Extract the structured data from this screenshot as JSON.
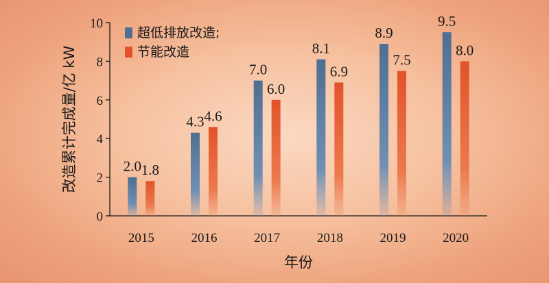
{
  "chart_data": {
    "type": "bar",
    "categories": [
      "2015",
      "2016",
      "2017",
      "2018",
      "2019",
      "2020"
    ],
    "series": [
      {
        "name": "超低排放改造;",
        "values": [
          2.0,
          4.3,
          7.0,
          8.1,
          8.9,
          9.5
        ],
        "color": "#4f6f92"
      },
      {
        "name": "节能改造",
        "values": [
          1.8,
          4.6,
          6.0,
          6.9,
          7.5,
          8.0
        ],
        "color": "#e2532a"
      }
    ],
    "data_labels": [
      [
        "2.0",
        "4.3",
        "7.0",
        "8.1",
        "8.9",
        "9.5"
      ],
      [
        "1.8",
        "4.6",
        "6.0",
        "6.9",
        "7.5",
        "8.0"
      ]
    ],
    "xlabel": "年份",
    "ylabel": "改造累计完成量/亿 kW",
    "ylim": [
      0,
      10
    ],
    "yticks": [
      "0",
      "2",
      "4",
      "6",
      "8",
      "10"
    ],
    "legend_position": "top-left",
    "grid": false
  }
}
